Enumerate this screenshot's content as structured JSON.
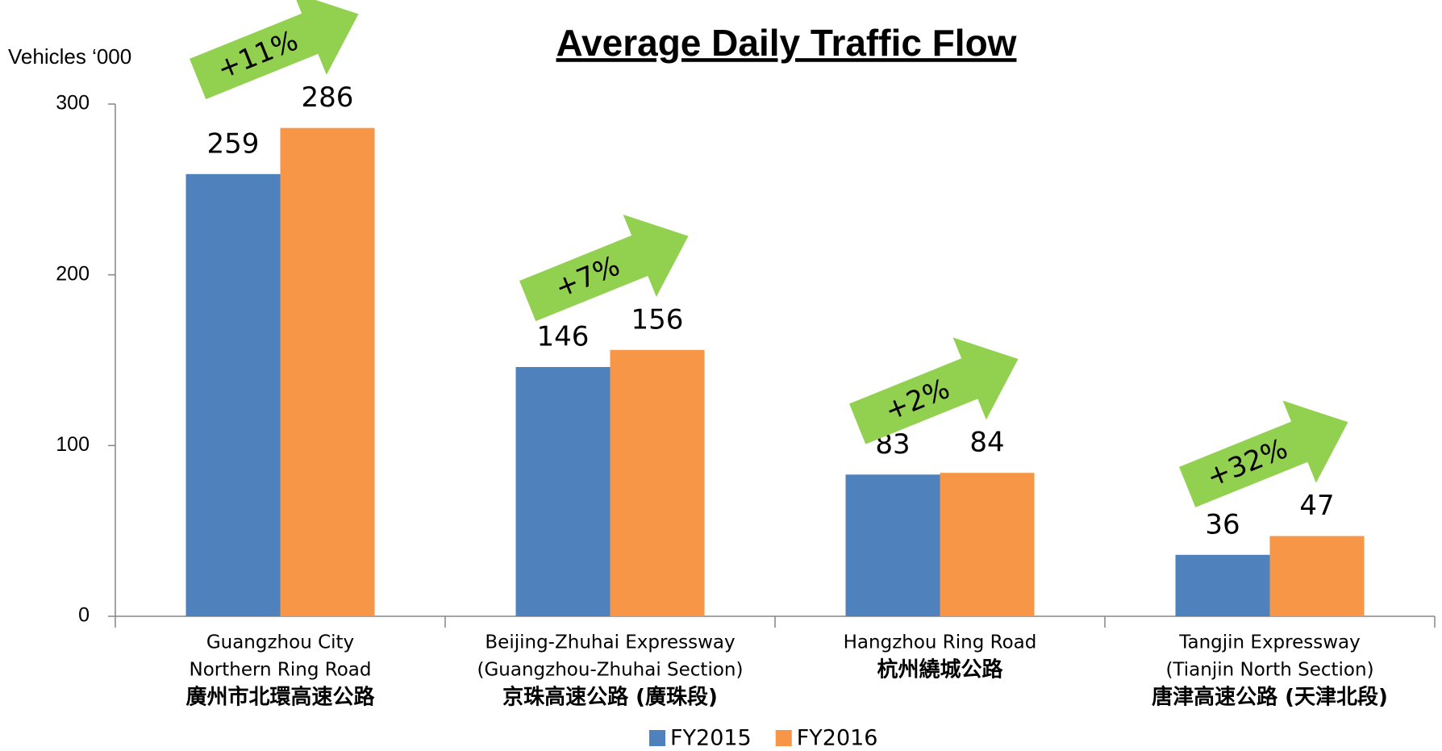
{
  "chart_data": {
    "type": "bar",
    "title": "Average Daily Traffic Flow",
    "y_label": "Vehicles ‘000",
    "categories": [
      [
        "Guangzhou City",
        "Northern Ring Road",
        "廣州市北環高速公路"
      ],
      [
        "Beijing-Zhuhai Expressway",
        "(Guangzhou-Zhuhai Section)",
        "京珠高速公路 (廣珠段)"
      ],
      [
        "Hangzhou Ring Road",
        "杭州繞城公路"
      ],
      [
        "Tangjin Expressway",
        "(Tianjin North Section)",
        "唐津高速公路 (天津北段)"
      ]
    ],
    "series": [
      {
        "name": "FY2015",
        "color": "#4f81bd",
        "values": [
          259,
          146,
          83,
          36
        ]
      },
      {
        "name": "FY2016",
        "color": "#f79646",
        "values": [
          286,
          156,
          84,
          47
        ]
      }
    ],
    "annotations": [
      "+11%",
      "+7%",
      "+2%",
      "+32%"
    ],
    "annotation_color": "#92d050",
    "ylim": [
      0,
      300
    ],
    "yticks": [
      0,
      100,
      200,
      300
    ],
    "grid": false,
    "legend": "bottom"
  }
}
